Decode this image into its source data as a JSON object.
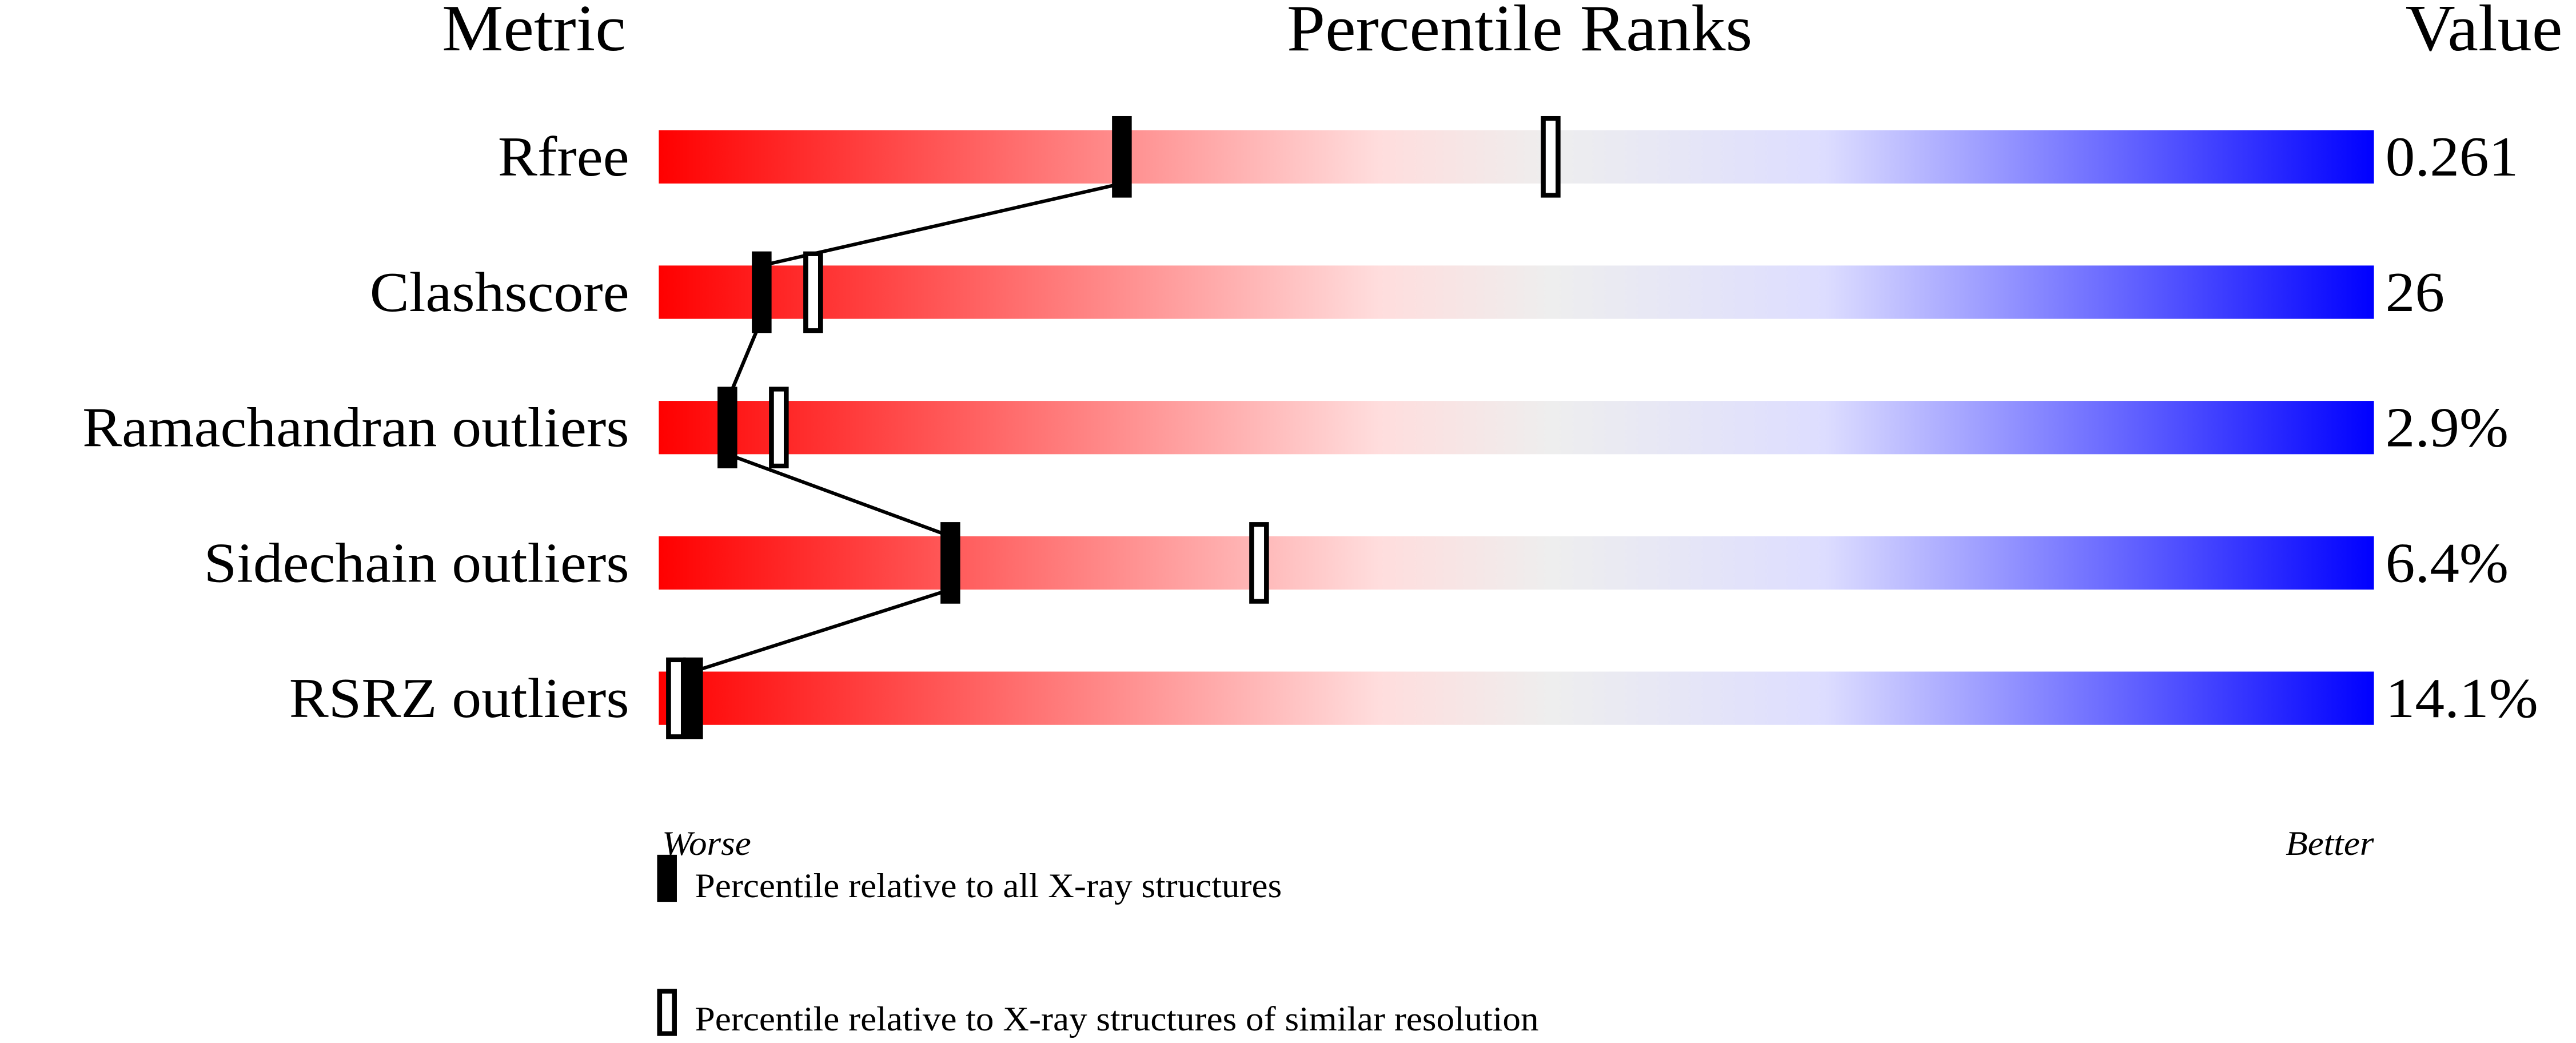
{
  "chart_data": {
    "type": "percentile-slider",
    "headers": {
      "metric": "Metric",
      "ranks": "Percentile Ranks",
      "value": "Value"
    },
    "xlim": [
      0,
      100
    ],
    "axis_labels": {
      "left": "Worse",
      "right": "Better"
    },
    "gradient_colors": [
      "#ff0000",
      "#ffdddd",
      "#eeeeee",
      "#ddddff",
      "#0000ff"
    ],
    "rows": [
      {
        "metric": "Rfree",
        "value": "0.261",
        "percentile_all": 27,
        "percentile_similar": 52
      },
      {
        "metric": "Clashscore",
        "value": "26",
        "percentile_all": 6,
        "percentile_similar": 9
      },
      {
        "metric": "Ramachandran outliers",
        "value": "2.9%",
        "percentile_all": 4,
        "percentile_similar": 7
      },
      {
        "metric": "Sidechain outliers",
        "value": "6.4%",
        "percentile_all": 17,
        "percentile_similar": 35
      },
      {
        "metric": "RSRZ outliers",
        "value": "14.1%",
        "percentile_all": 2,
        "percentile_similar": 1
      }
    ],
    "legend": [
      {
        "marker": "filled",
        "label": "Percentile relative to all X-ray structures"
      },
      {
        "marker": "open",
        "label": "Percentile relative to X-ray structures of similar resolution"
      }
    ]
  }
}
